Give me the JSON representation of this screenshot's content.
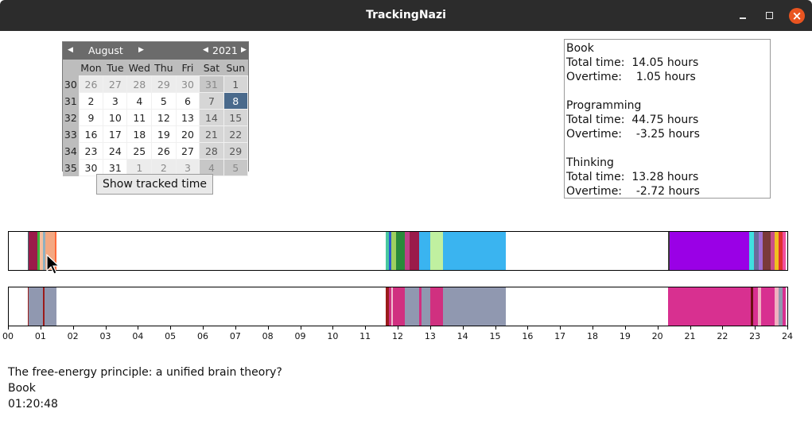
{
  "window": {
    "title": "TrackingNazi"
  },
  "calendar": {
    "month": "August",
    "year": "2021",
    "weekdays": [
      "Mon",
      "Tue",
      "Wed",
      "Thu",
      "Fri",
      "Sat",
      "Sun"
    ],
    "weeks": [
      {
        "num": "30",
        "days": [
          "26",
          "27",
          "28",
          "29",
          "30",
          "31",
          "1"
        ],
        "other": [
          true,
          true,
          true,
          true,
          true,
          true,
          false
        ]
      },
      {
        "num": "31",
        "days": [
          "2",
          "3",
          "4",
          "5",
          "6",
          "7",
          "8"
        ],
        "other": [
          false,
          false,
          false,
          false,
          false,
          false,
          false
        ]
      },
      {
        "num": "32",
        "days": [
          "9",
          "10",
          "11",
          "12",
          "13",
          "14",
          "15"
        ],
        "other": [
          false,
          false,
          false,
          false,
          false,
          false,
          false
        ]
      },
      {
        "num": "33",
        "days": [
          "16",
          "17",
          "18",
          "19",
          "20",
          "21",
          "22"
        ],
        "other": [
          false,
          false,
          false,
          false,
          false,
          false,
          false
        ]
      },
      {
        "num": "34",
        "days": [
          "23",
          "24",
          "25",
          "26",
          "27",
          "28",
          "29"
        ],
        "other": [
          false,
          false,
          false,
          false,
          false,
          false,
          false
        ]
      },
      {
        "num": "35",
        "days": [
          "30",
          "31",
          "1",
          "2",
          "3",
          "4",
          "5"
        ],
        "other": [
          false,
          false,
          true,
          true,
          true,
          true,
          true
        ]
      }
    ],
    "selected_day": "8"
  },
  "show_button": {
    "label": "Show tracked time"
  },
  "summary": [
    {
      "name": "Book",
      "total": "Total time:  14.05 hours",
      "overtime": "Overtime:    1.05 hours"
    },
    {
      "name": "Programming",
      "total": "Total time:  44.75 hours",
      "overtime": "Overtime:    -3.25 hours"
    },
    {
      "name": "Thinking",
      "total": "Total time:  13.28 hours",
      "overtime": "Overtime:    -2.72 hours"
    }
  ],
  "timeline": {
    "hours": [
      "00",
      "01",
      "02",
      "03",
      "04",
      "05",
      "06",
      "07",
      "08",
      "09",
      "10",
      "11",
      "12",
      "13",
      "14",
      "15",
      "16",
      "17",
      "18",
      "19",
      "20",
      "21",
      "22",
      "23",
      "24"
    ],
    "activity_bar": [
      {
        "start": 0.58,
        "end": 0.62,
        "color": "#3a6e6e"
      },
      {
        "start": 0.62,
        "end": 0.88,
        "color": "#9b1b4a"
      },
      {
        "start": 0.88,
        "end": 0.95,
        "color": "#3cb43c"
      },
      {
        "start": 0.95,
        "end": 1.05,
        "color": "#f4c0a0"
      },
      {
        "start": 1.05,
        "end": 1.12,
        "color": "#8fb0c0"
      },
      {
        "start": 1.12,
        "end": 1.42,
        "color": "#f4a882"
      },
      {
        "start": 1.42,
        "end": 1.48,
        "color": "#ff6a3a"
      },
      {
        "start": 11.62,
        "end": 11.72,
        "color": "#48c8a0"
      },
      {
        "start": 11.72,
        "end": 11.78,
        "color": "#2a5ad0"
      },
      {
        "start": 11.78,
        "end": 11.95,
        "color": "#9fd060"
      },
      {
        "start": 11.95,
        "end": 12.22,
        "color": "#2a8a3a"
      },
      {
        "start": 12.22,
        "end": 12.35,
        "color": "#c0408a"
      },
      {
        "start": 12.35,
        "end": 12.65,
        "color": "#9b1b4a"
      },
      {
        "start": 12.65,
        "end": 13.0,
        "color": "#3ab4f0"
      },
      {
        "start": 13.0,
        "end": 13.38,
        "color": "#c0f0a0"
      },
      {
        "start": 13.38,
        "end": 15.32,
        "color": "#3ab4f0"
      },
      {
        "start": 20.32,
        "end": 20.38,
        "color": "#3a3a3a"
      },
      {
        "start": 20.38,
        "end": 22.82,
        "color": "#9a00e6"
      },
      {
        "start": 22.82,
        "end": 22.98,
        "color": "#40e0e0"
      },
      {
        "start": 22.98,
        "end": 23.12,
        "color": "#6a6a9a"
      },
      {
        "start": 23.12,
        "end": 23.25,
        "color": "#a070d0"
      },
      {
        "start": 23.25,
        "end": 23.48,
        "color": "#7a3a3a"
      },
      {
        "start": 23.48,
        "end": 23.62,
        "color": "#c8508a"
      },
      {
        "start": 23.62,
        "end": 23.72,
        "color": "#f0c020"
      },
      {
        "start": 23.72,
        "end": 23.85,
        "color": "#e03030"
      },
      {
        "start": 23.85,
        "end": 23.95,
        "color": "#f050a0"
      }
    ],
    "category_bar": [
      {
        "start": 0.58,
        "end": 0.62,
        "color": "#9b1b1b"
      },
      {
        "start": 0.62,
        "end": 1.05,
        "color": "#9098b0"
      },
      {
        "start": 1.05,
        "end": 1.1,
        "color": "#9b1b1b"
      },
      {
        "start": 1.1,
        "end": 1.48,
        "color": "#9098b0"
      },
      {
        "start": 11.62,
        "end": 11.72,
        "color": "#9b1b1b"
      },
      {
        "start": 11.72,
        "end": 11.8,
        "color": "#d03080"
      },
      {
        "start": 11.8,
        "end": 11.85,
        "color": "#f0c0d0"
      },
      {
        "start": 11.85,
        "end": 12.22,
        "color": "#d03080"
      },
      {
        "start": 12.22,
        "end": 12.65,
        "color": "#9098b0"
      },
      {
        "start": 12.65,
        "end": 12.72,
        "color": "#d03080"
      },
      {
        "start": 12.72,
        "end": 13.0,
        "color": "#9098b0"
      },
      {
        "start": 13.0,
        "end": 13.38,
        "color": "#d03080"
      },
      {
        "start": 13.38,
        "end": 15.32,
        "color": "#9098b0"
      },
      {
        "start": 20.32,
        "end": 22.88,
        "color": "#d83090"
      },
      {
        "start": 22.88,
        "end": 22.95,
        "color": "#6a1010"
      },
      {
        "start": 22.95,
        "end": 23.1,
        "color": "#d83090"
      },
      {
        "start": 23.1,
        "end": 23.2,
        "color": "#f0b0c0"
      },
      {
        "start": 23.2,
        "end": 23.62,
        "color": "#d83090"
      },
      {
        "start": 23.62,
        "end": 23.72,
        "color": "#f0b0c0"
      },
      {
        "start": 23.72,
        "end": 23.85,
        "color": "#9098b0"
      },
      {
        "start": 23.85,
        "end": 23.95,
        "color": "#d83090"
      }
    ]
  },
  "selection": {
    "title": "The free-energy principle: a unified brain theory?",
    "category": "Book",
    "duration": "01:20:48"
  }
}
